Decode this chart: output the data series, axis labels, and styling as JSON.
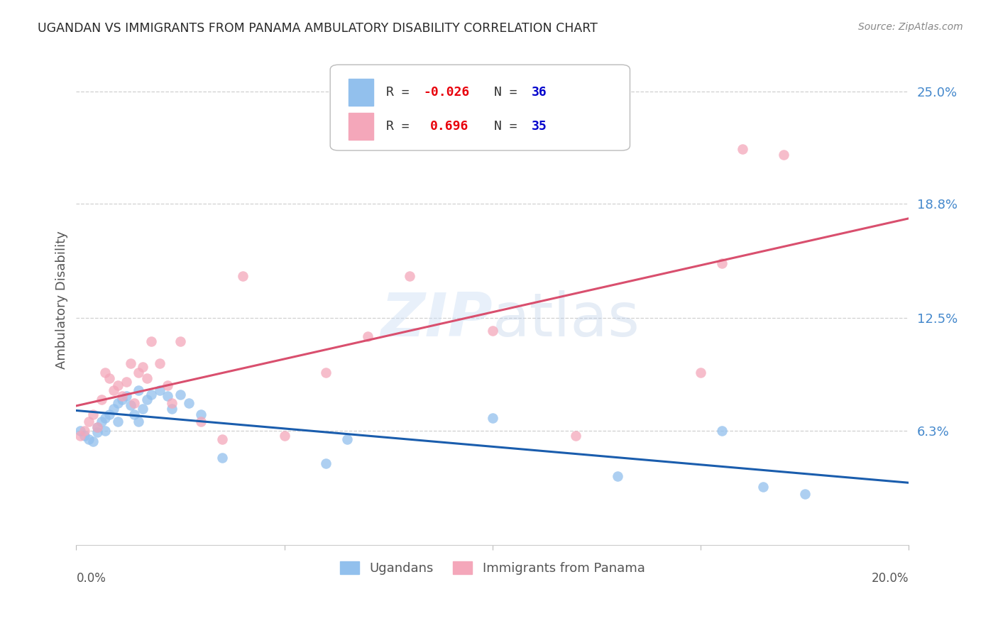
{
  "title": "UGANDAN VS IMMIGRANTS FROM PANAMA AMBULATORY DISABILITY CORRELATION CHART",
  "source": "Source: ZipAtlas.com",
  "ylabel": "Ambulatory Disability",
  "ytick_labels": [
    "6.3%",
    "12.5%",
    "18.8%",
    "25.0%"
  ],
  "ytick_values": [
    0.063,
    0.125,
    0.188,
    0.25
  ],
  "xlim": [
    0.0,
    0.2
  ],
  "ylim": [
    0.0,
    0.27
  ],
  "watermark": "ZIPatlas",
  "ugandan_R": -0.026,
  "ugandan_N": 36,
  "panama_R": 0.696,
  "panama_N": 35,
  "ugandan_color": "#92C0ED",
  "panama_color": "#F4A7BA",
  "ugandan_line_color": "#1A5DAD",
  "panama_line_color": "#D94F6E",
  "ugandan_x": [
    0.001,
    0.002,
    0.003,
    0.004,
    0.005,
    0.005,
    0.006,
    0.007,
    0.007,
    0.008,
    0.009,
    0.01,
    0.01,
    0.011,
    0.012,
    0.013,
    0.014,
    0.015,
    0.015,
    0.016,
    0.017,
    0.018,
    0.02,
    0.022,
    0.023,
    0.025,
    0.027,
    0.03,
    0.035,
    0.06,
    0.065,
    0.1,
    0.13,
    0.155,
    0.165,
    0.175
  ],
  "ugandan_y": [
    0.063,
    0.06,
    0.058,
    0.057,
    0.065,
    0.062,
    0.068,
    0.07,
    0.063,
    0.072,
    0.075,
    0.078,
    0.068,
    0.08,
    0.082,
    0.077,
    0.072,
    0.085,
    0.068,
    0.075,
    0.08,
    0.083,
    0.085,
    0.082,
    0.075,
    0.083,
    0.078,
    0.072,
    0.048,
    0.045,
    0.058,
    0.07,
    0.038,
    0.063,
    0.032,
    0.028
  ],
  "panama_x": [
    0.001,
    0.002,
    0.003,
    0.004,
    0.005,
    0.006,
    0.007,
    0.008,
    0.009,
    0.01,
    0.011,
    0.012,
    0.013,
    0.014,
    0.015,
    0.016,
    0.017,
    0.018,
    0.02,
    0.022,
    0.023,
    0.025,
    0.03,
    0.035,
    0.04,
    0.05,
    0.06,
    0.07,
    0.08,
    0.1,
    0.12,
    0.15,
    0.155,
    0.16,
    0.17
  ],
  "panama_y": [
    0.06,
    0.063,
    0.068,
    0.072,
    0.065,
    0.08,
    0.095,
    0.092,
    0.085,
    0.088,
    0.082,
    0.09,
    0.1,
    0.078,
    0.095,
    0.098,
    0.092,
    0.112,
    0.1,
    0.088,
    0.078,
    0.112,
    0.068,
    0.058,
    0.148,
    0.06,
    0.095,
    0.115,
    0.148,
    0.118,
    0.06,
    0.095,
    0.155,
    0.218,
    0.215
  ],
  "legend_ugandan_label": "Ugandans",
  "legend_panama_label": "Immigrants from Panama",
  "grid_color": "#d0d0d0",
  "grid_style": "--",
  "background_color": "#ffffff",
  "title_color": "#2a2a2a",
  "axis_label_color": "#555555",
  "ytick_color": "#4488cc",
  "source_color": "#888888",
  "r_text_ugandan_color": "#E8000B",
  "r_text_panama_color": "#E8000B",
  "n_text_color": "#0000CC"
}
